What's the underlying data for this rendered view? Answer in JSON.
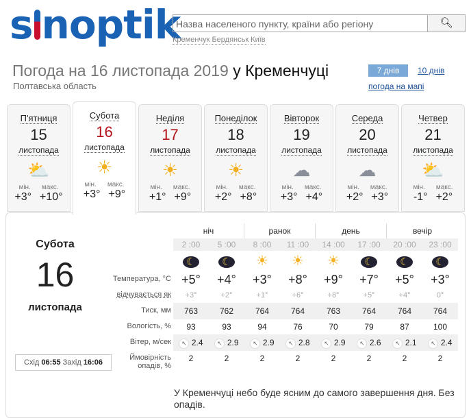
{
  "logo": "sinoptik",
  "search": {
    "placeholder": "Назва населеного пункту, країни або регіону",
    "quick": [
      "Кременчук",
      "Бердянськ",
      "Київ"
    ]
  },
  "title": {
    "prefix": "Погода на 16 листопада 2019",
    "city": "у Кременчуці",
    "region": "Полтавська область"
  },
  "nav": {
    "days7": "7 днів",
    "days10": "10 днів",
    "map": "погода на мапі"
  },
  "days": [
    {
      "name": "П'ятниця",
      "date": "15",
      "month": "листопада",
      "icon": "sun-cloud-icon",
      "min": "+3°",
      "max": "+10°",
      "red": false
    },
    {
      "name": "Субота",
      "date": "16",
      "month": "листопада",
      "icon": "sun-icon",
      "min": "+3°",
      "max": "+9°",
      "red": true,
      "selected": true
    },
    {
      "name": "Неділя",
      "date": "17",
      "month": "листопада",
      "icon": "sun-icon",
      "min": "+1°",
      "max": "+9°",
      "red": true
    },
    {
      "name": "Понеділок",
      "date": "18",
      "month": "листопада",
      "icon": "sun-icon",
      "min": "+2°",
      "max": "+8°",
      "red": false
    },
    {
      "name": "Вівторок",
      "date": "19",
      "month": "листопада",
      "icon": "cloud-icon",
      "min": "+3°",
      "max": "+4°",
      "red": false
    },
    {
      "name": "Середа",
      "date": "20",
      "month": "листопада",
      "icon": "cloud-icon",
      "min": "+2°",
      "max": "+3°",
      "red": false
    },
    {
      "name": "Четвер",
      "date": "21",
      "month": "листопада",
      "icon": "sun-cloud-icon",
      "min": "-1°",
      "max": "+2°",
      "red": false
    }
  ],
  "labels": {
    "min": "мін.",
    "max": "макс."
  },
  "detail": {
    "day": "Субота",
    "date": "16",
    "month": "листопада",
    "sunrise_label": "Схід",
    "sunrise": "06:55",
    "sunset_label": "Захід",
    "sunset": "16:06",
    "periods": [
      "ніч",
      "ранок",
      "день",
      "вечір"
    ],
    "times": [
      "2 :00",
      "5 :00",
      "8 :00",
      "11 :00",
      "14 :00",
      "17 :00",
      "20 :00",
      "23 :00"
    ],
    "icons": [
      "moon-cloud-icon",
      "moon-cloud-icon",
      "sun-icon",
      "sun-icon",
      "sun-icon",
      "moon-icon",
      "moon-icon",
      "moon-icon"
    ],
    "row_labels": {
      "temp": "Температура, °C",
      "feels": "відчувається як",
      "pressure": "Тиск, мм",
      "humidity": "Вологість, %",
      "wind": "Вітер, м/сек",
      "precip1": "Ймовірність",
      "precip2": "опадів, %"
    },
    "temp": [
      "+5°",
      "+4°",
      "+3°",
      "+8°",
      "+9°",
      "+7°",
      "+5°",
      "+3°"
    ],
    "feels": [
      "+3°",
      "+2°",
      "+1°",
      "+6°",
      "+8°",
      "+5°",
      "+4°",
      "0°"
    ],
    "pressure": [
      "763",
      "762",
      "764",
      "764",
      "763",
      "764",
      "764",
      "764"
    ],
    "humidity": [
      "93",
      "93",
      "94",
      "76",
      "70",
      "79",
      "87",
      "100"
    ],
    "wind": [
      "2.4",
      "2.9",
      "2.9",
      "2.8",
      "2.9",
      "2.6",
      "2.1",
      "2.4"
    ],
    "wind_direction": "north-west",
    "precip": [
      "2",
      "2",
      "2",
      "2",
      "2",
      "2",
      "2",
      "2"
    ],
    "description": "У Кременчуці небо буде ясним до самого завершення дня. Без опадів."
  }
}
